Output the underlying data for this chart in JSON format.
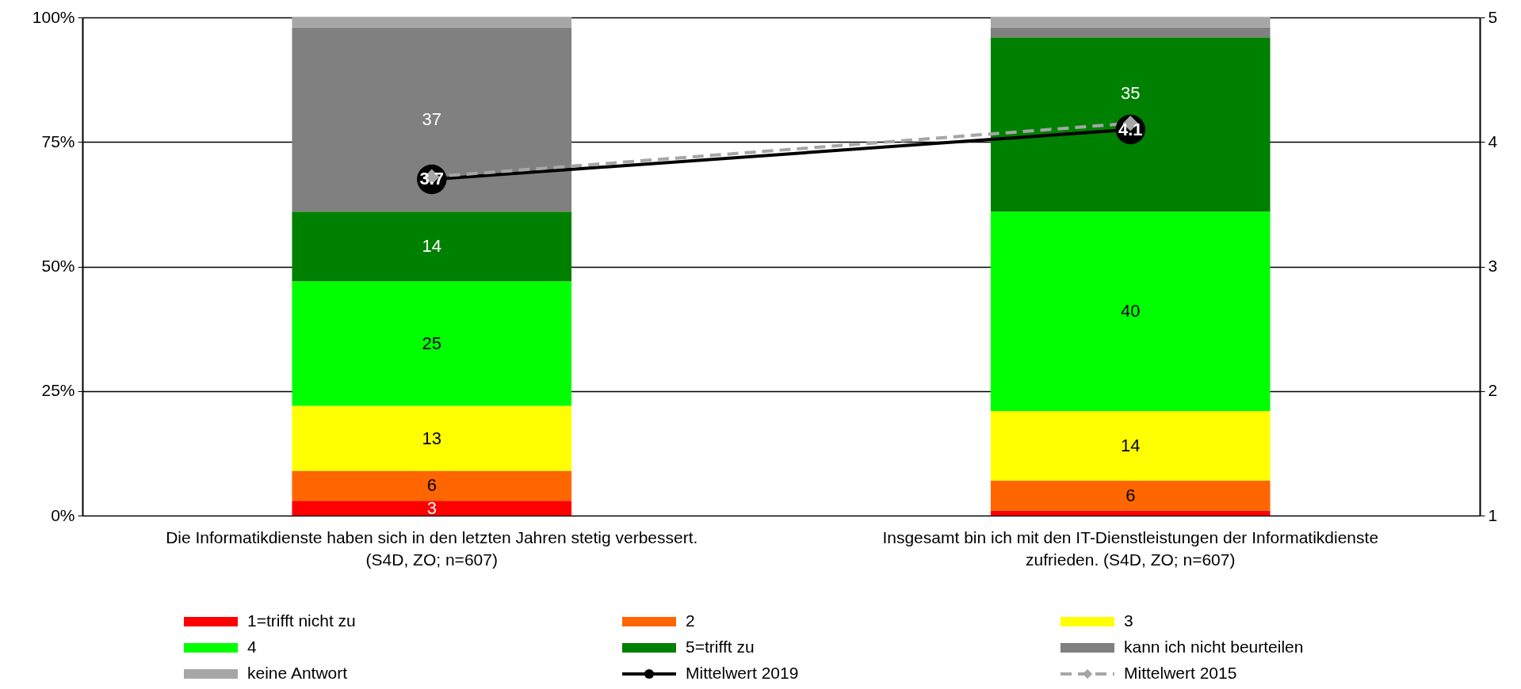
{
  "chart_data": {
    "type": "bar",
    "stacked": true,
    "categories": [
      "Die Informatikdienste haben sich in den letzten Jahren stetig verbessert. (S4D, ZO; n=607)",
      "Insgesamt bin ich mit den IT-Dienstleistungen der Informatikdienste zufrieden. (S4D,  ZO; n=607)"
    ],
    "series": [
      {
        "name": "1=trifft nicht zu",
        "color": "#ff0000",
        "values": [
          3,
          1
        ],
        "value_labels": [
          "3",
          null
        ]
      },
      {
        "name": "2",
        "color": "#ff6600",
        "values": [
          6,
          6
        ],
        "value_labels": [
          "6",
          "6"
        ]
      },
      {
        "name": "3",
        "color": "#ffff00",
        "values": [
          13,
          14
        ],
        "value_labels": [
          "13",
          "14"
        ]
      },
      {
        "name": "4",
        "color": "#00ff00",
        "values": [
          25,
          40
        ],
        "value_labels": [
          "25",
          "40"
        ]
      },
      {
        "name": "5=trifft zu",
        "color": "#008000",
        "values": [
          14,
          35
        ],
        "value_labels": [
          "14",
          "35"
        ]
      },
      {
        "name": "kann ich nicht beurteilen",
        "color": "#808080",
        "values": [
          37,
          2
        ],
        "value_labels": [
          "37",
          null
        ]
      },
      {
        "name": "keine Antwort",
        "color": "#a6a6a6",
        "values": [
          2,
          2
        ],
        "value_labels": [
          null,
          null
        ]
      },
      {
        "name": "Mittelwert 2019",
        "type": "line",
        "axis": "y2",
        "color": "#000000",
        "marker": "circle",
        "line_style": "solid",
        "values": [
          3.7,
          4.1
        ],
        "value_labels": [
          "3.7",
          "4.1"
        ]
      },
      {
        "name": "Mittelwert 2015",
        "type": "line",
        "axis": "y2",
        "color": "#a6a6a6",
        "marker": "diamond",
        "line_style": "dashed",
        "values": [
          3.72,
          4.15
        ]
      }
    ],
    "ylim": [
      0,
      100
    ],
    "yticks": [
      {
        "value": 0,
        "label": "0%"
      },
      {
        "value": 25,
        "label": "25%"
      },
      {
        "value": 50,
        "label": "50%"
      },
      {
        "value": 75,
        "label": "75%"
      },
      {
        "value": 100,
        "label": "100%"
      }
    ],
    "y2lim": [
      1,
      5
    ],
    "y2ticks": [
      {
        "value": 1,
        "label": "1"
      },
      {
        "value": 2,
        "label": "2"
      },
      {
        "value": 3,
        "label": "3"
      },
      {
        "value": 4,
        "label": "4"
      },
      {
        "value": 5,
        "label": "5"
      }
    ],
    "grid": "y",
    "legend": "bottom"
  }
}
